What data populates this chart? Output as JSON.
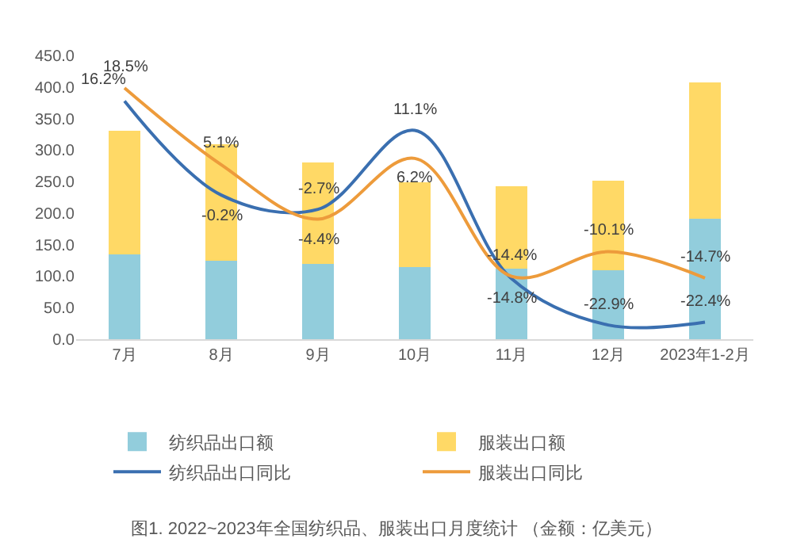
{
  "chart_data": {
    "type": "bar",
    "title": "图1. 2022~2023年全国纺织品、服装出口月度统计 （金额：亿美元）",
    "categories": [
      "7月",
      "8月",
      "9月",
      "10月",
      "11月",
      "12月",
      "2023年1-2月"
    ],
    "stacked": true,
    "ylim": [
      0,
      450
    ],
    "yticks": [
      {
        "value": 0,
        "label": "0.0"
      },
      {
        "value": 50,
        "label": "50.0"
      },
      {
        "value": 100,
        "label": "100.0"
      },
      {
        "value": 150,
        "label": "150.0"
      },
      {
        "value": 200,
        "label": "200.0"
      },
      {
        "value": 250,
        "label": "250.0"
      },
      {
        "value": 300,
        "label": "300.0"
      },
      {
        "value": 350,
        "label": "350.0"
      },
      {
        "value": 400,
        "label": "400.0"
      },
      {
        "value": 450,
        "label": "450.0"
      }
    ],
    "grid": false,
    "legend": "bottom",
    "series": [
      {
        "name": "纺织品出口额",
        "color": "#92cddc",
        "values": [
          134,
          124,
          120,
          114,
          112,
          109,
          191
        ]
      },
      {
        "name": "服装出口额",
        "color": "#ffd966",
        "values": [
          197,
          185,
          160,
          135,
          131,
          142,
          216
        ]
      },
      {
        "name": "纺织品出口同比",
        "type": "line",
        "axis": "y2",
        "color": "#3a6fb0",
        "values": [
          16.2,
          -0.2,
          -2.7,
          11.1,
          -14.8,
          -22.9,
          -22.4
        ],
        "value_labels": [
          "16.2%",
          "-0.2%",
          "-2.7%",
          "11.1%",
          "-14.8%",
          "-22.9%",
          "-22.4%"
        ]
      },
      {
        "name": "服装出口同比",
        "type": "line",
        "axis": "y2",
        "color": "#ed9b3b",
        "values": [
          18.5,
          5.1,
          -4.4,
          6.2,
          -14.4,
          -10.1,
          -14.7
        ],
        "value_labels": [
          "18.5%",
          "5.1%",
          "-4.4%",
          "6.2%",
          "-14.4%",
          "-10.1%",
          "-14.7%"
        ]
      }
    ]
  }
}
